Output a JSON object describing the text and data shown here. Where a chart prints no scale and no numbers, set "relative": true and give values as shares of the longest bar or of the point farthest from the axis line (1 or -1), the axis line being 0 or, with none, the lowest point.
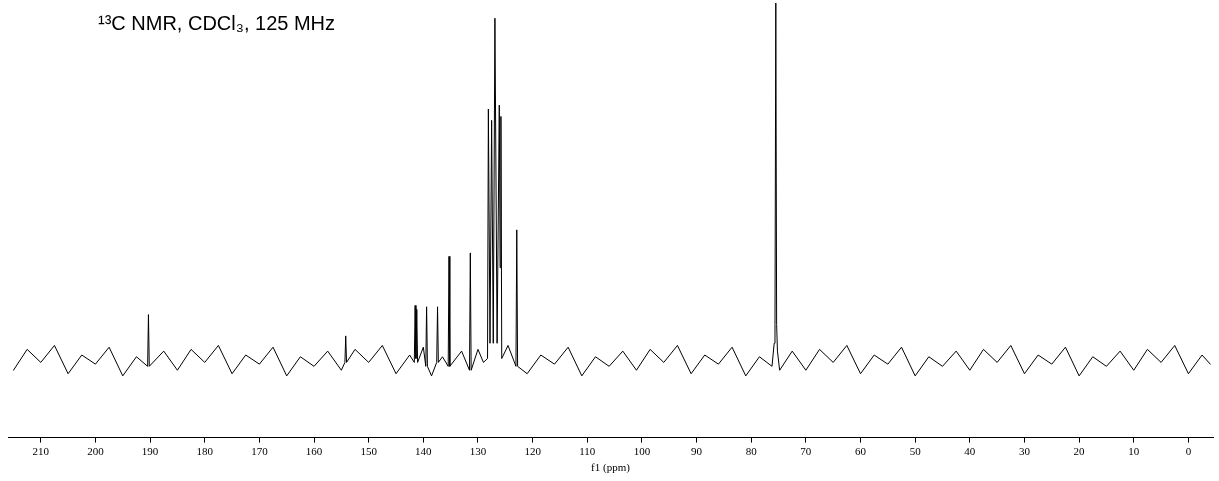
{
  "chart_data": {
    "type": "line",
    "title": "¹³C NMR, CDCl₃, 125 MHz",
    "xlabel": "f1 (ppm)",
    "relative": true,
    "grid": false,
    "legend": false,
    "marker": "none",
    "line_style": "solid",
    "xlim": [
      216,
      -4.5
    ],
    "xticks": [
      210,
      200,
      190,
      180,
      170,
      160,
      150,
      140,
      130,
      120,
      110,
      100,
      90,
      80,
      70,
      60,
      50,
      40,
      30,
      20,
      10,
      0
    ],
    "tick_labels": "x",
    "series": [
      {
        "color": "#000000",
        "x": [
          215,
          212.5,
          210,
          207.5,
          205,
          202.5,
          200,
          197.5,
          195,
          192.5,
          190.45,
          190.3,
          190.15,
          187.5,
          185,
          182.5,
          180,
          177.5,
          175,
          172.5,
          170,
          167.5,
          165,
          162.5,
          160,
          157.5,
          155,
          154.35,
          154.2,
          154.05,
          152.5,
          150,
          147.5,
          145,
          142.5,
          141.65,
          141.5,
          141.35,
          141.2,
          141.05,
          140,
          139.55,
          139.4,
          139.25,
          138.5,
          137.55,
          137.4,
          137.25,
          136.5,
          135.45,
          135.3,
          135.15,
          133,
          131.55,
          131.4,
          131.25,
          130,
          129,
          128.25,
          128.1,
          127.8,
          127.5,
          127.2,
          126.9,
          126.5,
          126.1,
          125.95,
          125.8,
          125.65,
          124.5,
          123.05,
          122.9,
          122.75,
          121,
          118.5,
          116,
          113.5,
          111,
          108.5,
          106,
          103.5,
          101,
          98.5,
          96,
          93.5,
          91,
          88.5,
          86,
          83.5,
          81,
          78.5,
          76.2,
          75.8,
          75.65,
          75.5,
          75.35,
          75.2,
          74.8,
          72.5,
          70,
          67.5,
          65,
          62.5,
          60,
          57.5,
          55,
          52.5,
          50,
          47.5,
          45,
          42.5,
          40,
          37.5,
          35,
          32.5,
          30,
          27.5,
          25,
          22.5,
          20,
          17.5,
          15,
          12.5,
          10,
          7.5,
          5,
          2.5,
          0,
          -2.5,
          -4
        ],
        "values": [
          0.155,
          0.203,
          0.173,
          0.212,
          0.147,
          0.19,
          0.169,
          0.208,
          0.142,
          0.186,
          0.164,
          0.283,
          0.164,
          0.199,
          0.155,
          0.203,
          0.173,
          0.212,
          0.147,
          0.19,
          0.169,
          0.208,
          0.142,
          0.186,
          0.164,
          0.199,
          0.155,
          0.173,
          0.234,
          0.173,
          0.203,
          0.173,
          0.212,
          0.147,
          0.19,
          0.173,
          0.304,
          0.182,
          0.295,
          0.173,
          0.208,
          0.164,
          0.301,
          0.164,
          0.142,
          0.173,
          0.301,
          0.173,
          0.186,
          0.164,
          0.417,
          0.164,
          0.199,
          0.155,
          0.425,
          0.155,
          0.203,
          0.173,
          0.182,
          0.756,
          0.217,
          0.73,
          0.217,
          0.965,
          0.217,
          0.765,
          0.391,
          0.739,
          0.182,
          0.212,
          0.164,
          0.478,
          0.164,
          0.147,
          0.19,
          0.169,
          0.208,
          0.142,
          0.186,
          0.164,
          0.199,
          0.155,
          0.203,
          0.173,
          0.212,
          0.147,
          0.19,
          0.169,
          0.208,
          0.142,
          0.186,
          0.164,
          0.217,
          0.26,
          1,
          0.26,
          0.199,
          0.155,
          0.199,
          0.155,
          0.203,
          0.173,
          0.212,
          0.147,
          0.19,
          0.169,
          0.208,
          0.142,
          0.186,
          0.164,
          0.199,
          0.155,
          0.203,
          0.173,
          0.212,
          0.147,
          0.19,
          0.169,
          0.208,
          0.142,
          0.186,
          0.164,
          0.199,
          0.155,
          0.203,
          0.173,
          0.212,
          0.147,
          0.19,
          0.169
        ]
      }
    ]
  }
}
